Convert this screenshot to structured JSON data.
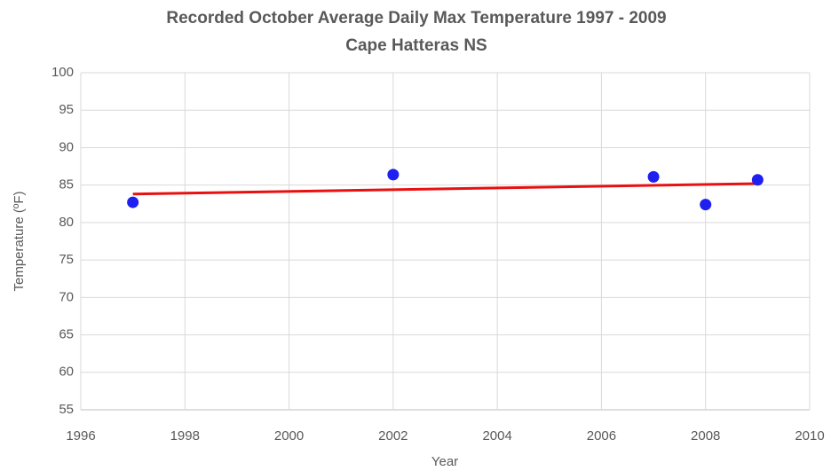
{
  "chart_data": {
    "type": "scatter",
    "title": "Recorded October Average Daily Max Temperature 1997 - 2009",
    "subtitle": "Cape Hatteras NS",
    "x_label": "Year",
    "y_label": "Temperature (ºF)",
    "series": [
      {
        "color": "#1f1fef",
        "x": [
          1997,
          2002,
          2007,
          2008,
          2009
        ],
        "values": [
          82.7,
          86.4,
          86.1,
          82.4,
          85.7
        ]
      }
    ],
    "trendline": {
      "color": "#e81010",
      "x": [
        1997,
        2009
      ],
      "values": [
        83.8,
        85.2
      ]
    },
    "xlim": [
      1996,
      2010
    ],
    "xticks": [
      1996,
      1998,
      2000,
      2002,
      2004,
      2006,
      2008,
      2010
    ],
    "ylim": [
      55,
      100
    ],
    "yticks": [
      55,
      60,
      65,
      70,
      75,
      80,
      85,
      90,
      95,
      100
    ],
    "grid": true
  }
}
